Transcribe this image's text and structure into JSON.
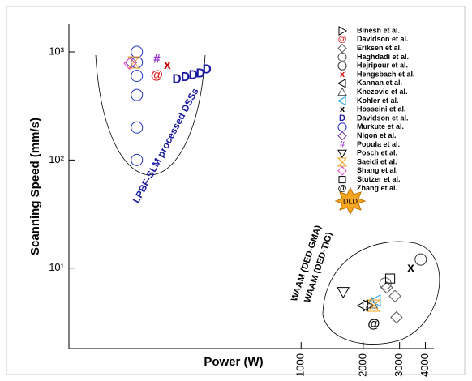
{
  "chart_data": {
    "type": "scatter",
    "xlabel": "Power (W)",
    "ylabel": "Scanning Speed (mm/s)",
    "xscale": "log",
    "yscale": "log",
    "xlim": [
      75,
      4400
    ],
    "ylim": [
      1.8,
      1800
    ],
    "xticks": [
      1000,
      2000,
      3000,
      4000
    ],
    "yticks": [
      {
        "value": 10,
        "label": "10¹"
      },
      {
        "value": 100,
        "label": "10²"
      },
      {
        "value": 1000,
        "label": "10³"
      }
    ],
    "annotations": [
      "LPBF-SLM processed DSSs",
      "WAAM (DED-GMA)",
      "WAAM (DED-TIG)",
      "DLD"
    ],
    "series": [
      {
        "name": "Binesh et al.",
        "marker": "triangle-right",
        "color": "#000000",
        "x": [
          2100
        ],
        "y": [
          4.5
        ]
      },
      {
        "name": "Davidson et al.",
        "marker": "@",
        "color": "#e02020",
        "x": [
          200
        ],
        "y": [
          600
        ]
      },
      {
        "name": "Eriksen et al.",
        "marker": "diamond",
        "color": "#555555",
        "x": [
          2600,
          2850,
          2900
        ],
        "y": [
          6.6,
          5.5,
          3.5
        ]
      },
      {
        "name": "Haghdadi et al.",
        "marker": "circle",
        "color": "#555555",
        "x": [
          2560
        ],
        "y": [
          7.2
        ]
      },
      {
        "name": "Hejripour et al.",
        "marker": "circle",
        "color": "#333333",
        "x": [
          3800
        ],
        "y": [
          12
        ]
      },
      {
        "name": "Hengsbach et al.",
        "marker": "x",
        "color": "#cc0000",
        "x": [
          225
        ],
        "y": [
          750
        ]
      },
      {
        "name": "Kannan et al.",
        "marker": "triangle-left",
        "color": "#000000",
        "x": [
          2000
        ],
        "y": [
          4.5
        ]
      },
      {
        "name": "Knezovic et al.",
        "marker": "triangle-up",
        "color": "#555555",
        "x": [
          2200
        ],
        "y": [
          4.7
        ]
      },
      {
        "name": "Kohler et al.",
        "marker": "triangle-left",
        "color": "#1aa0e0",
        "x": [
          2300
        ],
        "y": [
          5.0
        ]
      },
      {
        "name": "Hosseini et al.",
        "marker": "x",
        "color": "#000000",
        "x": [
          3400
        ],
        "y": [
          10
        ]
      },
      {
        "name": "Davidson et al.",
        "marker": "D",
        "color": "#1a1aa0",
        "x": [
          250,
          275,
          300,
          325,
          350
        ],
        "y": [
          550,
          575,
          600,
          625,
          680
        ]
      },
      {
        "name": "Murkute et al.",
        "marker": "circle",
        "color": "#2233cc",
        "x": [
          160,
          160,
          160,
          160,
          160,
          160
        ],
        "y": [
          1000,
          800,
          600,
          400,
          200,
          100
        ]
      },
      {
        "name": "Nigon et al.",
        "marker": "diamond",
        "color": "#7030a0",
        "x": [
          150
        ],
        "y": [
          800
        ]
      },
      {
        "name": "Popula et al.",
        "marker": "#",
        "color": "#9932cc",
        "x": [
          200
        ],
        "y": [
          850
        ]
      },
      {
        "name": "Posch et al.",
        "marker": "triangle-down",
        "color": "#000000",
        "x": [
          1600
        ],
        "y": [
          6
        ]
      },
      {
        "name": "Saeidi et al.",
        "marker": "hourglass",
        "color": "#f0a020",
        "x": [
          155,
          2250
        ],
        "y": [
          800,
          4.5
        ]
      },
      {
        "name": "Shang et al.",
        "marker": "diamond",
        "color": "#e040c0",
        "x": [
          148
        ],
        "y": [
          780
        ]
      },
      {
        "name": "Stutzer et al.",
        "marker": "square",
        "color": "#000000",
        "x": [
          2700
        ],
        "y": [
          8
        ]
      },
      {
        "name": "Zhang et al.",
        "marker": "@",
        "color": "#000000",
        "x": [
          2250
        ],
        "y": [
          3
        ]
      }
    ]
  }
}
